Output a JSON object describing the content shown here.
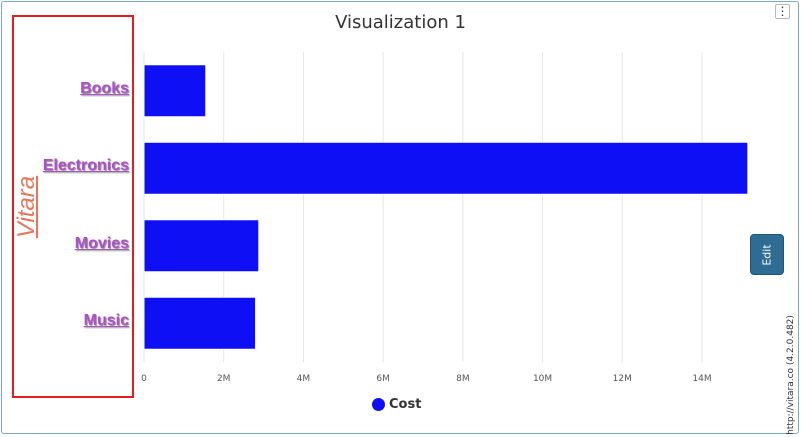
{
  "widget": {
    "menu_icon_glyph": "⋮",
    "edit_label": "Edit",
    "credit_link": "http://vitara.co",
    "credit_version": "(4.2.0.482)",
    "watermark": "Vitara"
  },
  "colors": {
    "bar": "#0f0ff5",
    "grid": "#e6e6e6",
    "category_label": "#b04fcc",
    "watermark": "#e8755a",
    "highlight_box": "#e02020",
    "edit_tab": "#2e6c93"
  },
  "chart_data": {
    "type": "bar",
    "orientation": "horizontal",
    "title": "Visualization 1",
    "categories": [
      "Books",
      "Electronics",
      "Movies",
      "Music"
    ],
    "series": [
      {
        "name": "Cost",
        "values": [
          1550000,
          15150000,
          2880000,
          2800000
        ]
      }
    ],
    "xlim": [
      0,
      15200000
    ],
    "x_ticks": [
      0,
      2000000,
      4000000,
      6000000,
      8000000,
      10000000,
      12000000,
      14000000
    ],
    "x_tick_labels": [
      "0",
      "2M",
      "4M",
      "6M",
      "8M",
      "10M",
      "12M",
      "14M"
    ],
    "grid": true,
    "legend_position": "bottom-center"
  }
}
